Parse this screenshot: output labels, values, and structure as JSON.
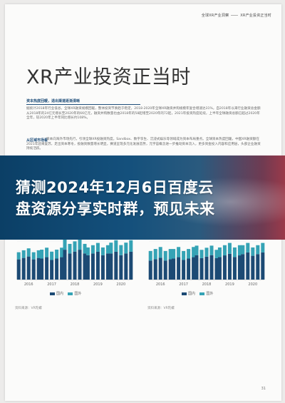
{
  "header": {
    "brand": "全球XR产业洞察",
    "section": "XR产业投资正当时"
  },
  "title": "XR产业投资正当时",
  "section1": {
    "heading": "资本热度回暖，退出渠道逐渐清晰",
    "text": "据统计2018年行业低谷，全球XR融资规模回暖，整体投资节奏趋于稳定，2018-2020年全球XR融资并购规模年复合增速达31%，自2018年以来行业融资总金额从2018年的24亿元增长至2020年的66亿元，融资并购数量也由2018年的58起增至2020年的72起，2021年投资热度延续，上半年全球融资总额已超过2020年全年，较2020年上半年同比增长约108%。"
  },
  "section2": {
    "heading": "从区域市场看",
    "text": "资本向海外市场先行，引领全球XR投融资热度。Sandbox、数字孪生、沉浸式娱乐等领域成为资本布局重点。全球资本热度回暖，中国XR融资额在2021年迎来复苏，走出资本寒冬，投融资数量增长明显，赛道呈现多元化发展态势，元宇宙概念进一步推动资本流入，更多资金投入内容和应用层，头部企业融资持续活跃。"
  },
  "banner": {
    "line1": "猜测2024年12月6日百度云",
    "line2": "盘资源分享实时群，预见未来"
  },
  "colors": {
    "series_domestic": "#1c4a74",
    "series_overseas": "#35a3b5",
    "banner_start": "#0b3f66",
    "banner_end": "#9b3a4a"
  },
  "legend": {
    "domestic": "国内",
    "overseas": "国外"
  },
  "chart_data": [
    {
      "type": "bar",
      "categories": [
        "2016",
        "2017",
        "2018",
        "2019",
        "2020"
      ],
      "series": [
        {
          "name": "国内",
          "values": [
            34,
            33,
            44,
            41,
            41
          ]
        },
        {
          "name": "国外",
          "values": [
            12,
            14,
            16,
            13,
            17
          ]
        }
      ],
      "ylim": [
        0,
        55
      ]
    },
    {
      "type": "bar",
      "categories": [
        "2016",
        "2017",
        "2018",
        "2019",
        "2020"
      ],
      "series": [
        {
          "name": "国内",
          "values": [
            32,
            33,
            36,
            38,
            40
          ]
        },
        {
          "name": "国外",
          "values": [
            16,
            15,
            14,
            16,
            14
          ]
        }
      ],
      "ylim": [
        0,
        55
      ]
    }
  ],
  "notes": {
    "left": "资料来源：VR陀螺",
    "right": "资料来源：VR陀螺"
  },
  "page_number": "31"
}
